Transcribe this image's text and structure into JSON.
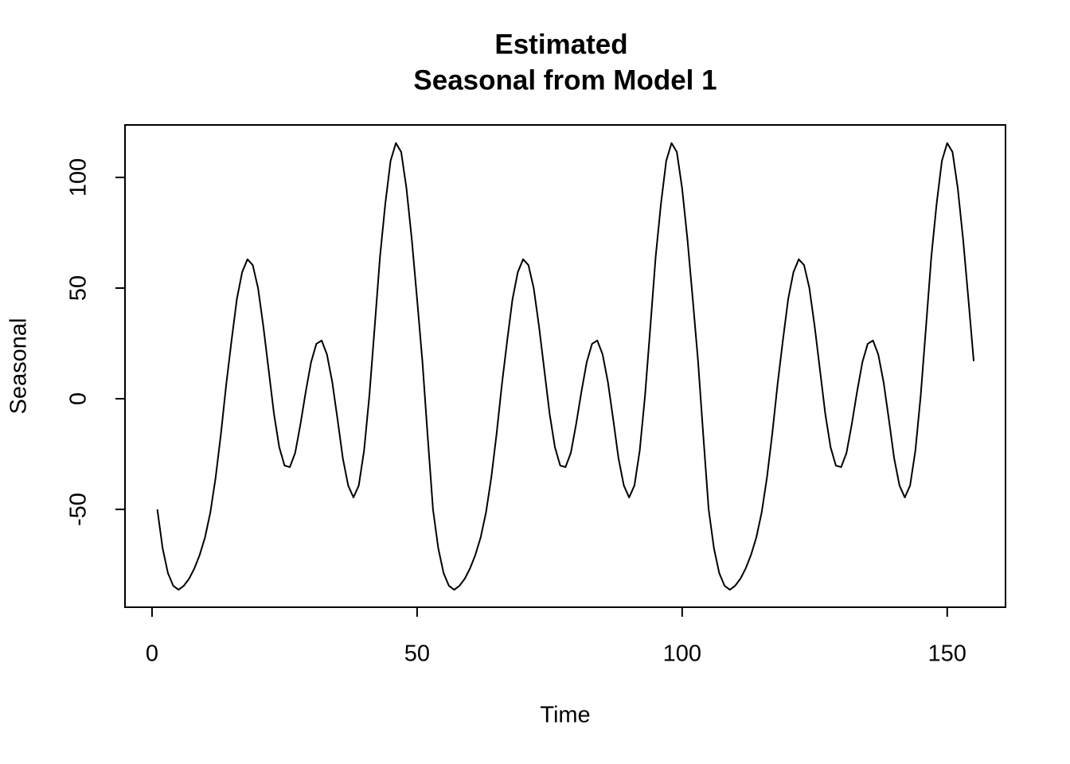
{
  "chart_data": {
    "type": "line",
    "title": [
      "Estimated",
      "Seasonal from Model 1"
    ],
    "x_label": "Time",
    "y_label": "Seasonal",
    "xlim": [
      -5.1,
      161
    ],
    "ylim": [
      -94.2,
      123.7
    ],
    "xticks": [
      0,
      50,
      100,
      150
    ],
    "yticks": [
      -50,
      0,
      50,
      100
    ],
    "color": "#000000",
    "x": [
      1,
      2,
      3,
      4,
      5,
      6,
      7,
      8,
      9,
      10,
      11,
      12,
      13,
      14,
      15,
      16,
      17,
      18,
      19,
      20,
      21,
      22,
      23,
      24,
      25,
      26,
      27,
      28,
      29,
      30,
      31,
      32,
      33,
      34,
      35,
      36,
      37,
      38,
      39,
      40,
      41,
      42,
      43,
      44,
      45,
      46,
      47,
      48,
      49,
      50,
      51,
      52,
      53,
      54,
      55,
      56,
      57,
      58,
      59,
      60,
      61,
      62,
      63,
      64,
      65,
      66,
      67,
      68,
      69,
      70,
      71,
      72,
      73,
      74,
      75,
      76,
      77,
      78,
      79,
      80,
      81,
      82,
      83,
      84,
      85,
      86,
      87,
      88,
      89,
      90,
      91,
      92,
      93,
      94,
      95,
      96,
      97,
      98,
      99,
      100,
      101,
      102,
      103,
      104,
      105,
      106,
      107,
      108,
      109,
      110,
      111,
      112,
      113,
      114,
      115,
      116,
      117,
      118,
      119,
      120,
      121,
      122,
      123,
      124,
      125,
      126,
      127,
      128,
      129,
      130,
      131,
      132,
      133,
      134,
      135,
      136,
      137,
      138,
      139,
      140,
      141,
      142,
      143,
      144,
      145,
      146,
      147,
      148,
      149,
      150,
      151,
      152,
      153,
      154,
      155
    ],
    "values": [
      -50,
      -67.6,
      -78.8,
      -84.5,
      -86.3,
      -84.5,
      -81.3,
      -76.6,
      -70.5,
      -62.6,
      -51.4,
      -35.6,
      -15.8,
      6.5,
      26.3,
      45,
      57.2,
      63,
      60.4,
      50,
      32.7,
      13,
      -6.8,
      -21.9,
      -30.2,
      -30.9,
      -24.5,
      -11.5,
      3.2,
      16.5,
      24.8,
      26.3,
      20,
      7.5,
      -9.4,
      -27,
      -39.2,
      -44.6,
      -39.2,
      -23.4,
      1.4,
      32.4,
      64,
      88,
      107.5,
      115.5,
      111.5,
      95,
      72,
      45,
      17,
      -17,
      -50,
      -67.6,
      -78.8,
      -84.5,
      -86.3,
      -84.5,
      -81.3,
      -76.6,
      -70.5,
      -62.6,
      -51.4,
      -35.6,
      -15.8,
      6.5,
      26.3,
      45,
      57.2,
      63,
      60.4,
      50,
      32.7,
      13,
      -6.8,
      -21.9,
      -30.2,
      -30.9,
      -24.5,
      -11.5,
      3.2,
      16.5,
      24.8,
      26.3,
      20,
      7.5,
      -9.4,
      -27,
      -39.2,
      -44.6,
      -39.2,
      -23.4,
      1.4,
      32.4,
      64,
      88,
      107.5,
      115.5,
      111.5,
      95,
      72,
      45,
      17,
      -17,
      -50,
      -67.6,
      -78.8,
      -84.5,
      -86.3,
      -84.5,
      -81.3,
      -76.6,
      -70.5,
      -62.6,
      -51.4,
      -35.6,
      -15.8,
      6.5,
      26.3,
      45,
      57.2,
      63,
      60.4,
      50,
      32.7,
      13,
      -6.8,
      -21.9,
      -30.2,
      -30.9,
      -24.5,
      -11.5,
      3.2,
      16.5,
      24.8,
      26.3,
      20,
      7.5,
      -9.4,
      -27,
      -39.2,
      -44.6,
      -39.2,
      -23.4,
      1.4,
      32.4,
      64,
      88,
      107.5,
      115.5,
      111.5,
      95,
      72,
      45,
      17
    ]
  }
}
